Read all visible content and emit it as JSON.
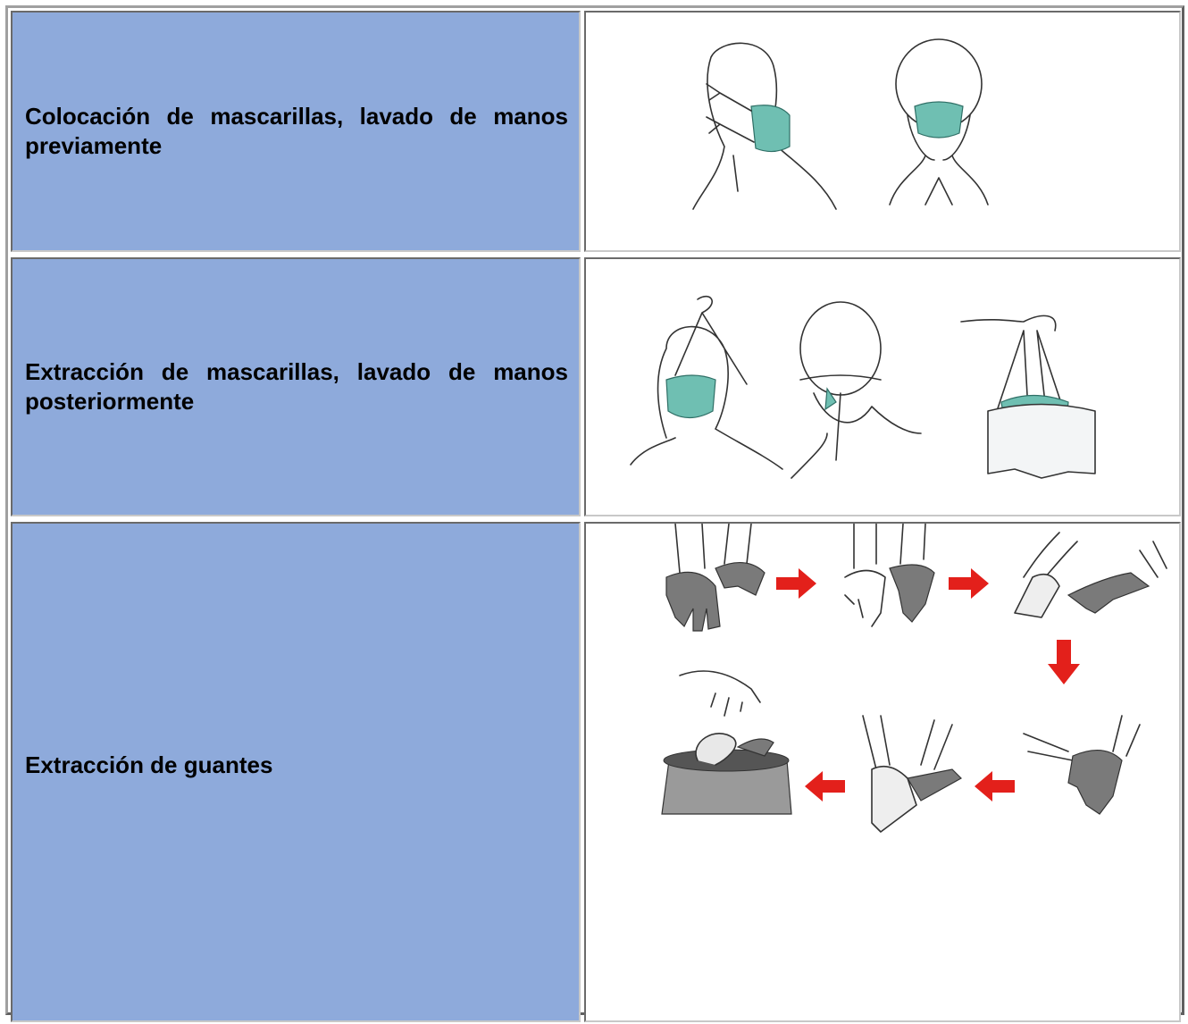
{
  "table": {
    "rows": [
      [
        "Colocación de mascarillas, lavado de manos previamente"
      ],
      [
        "Extracción de mascarillas, lavado de manos posteriormente"
      ],
      [
        "Extracción de guantes"
      ]
    ]
  }
}
